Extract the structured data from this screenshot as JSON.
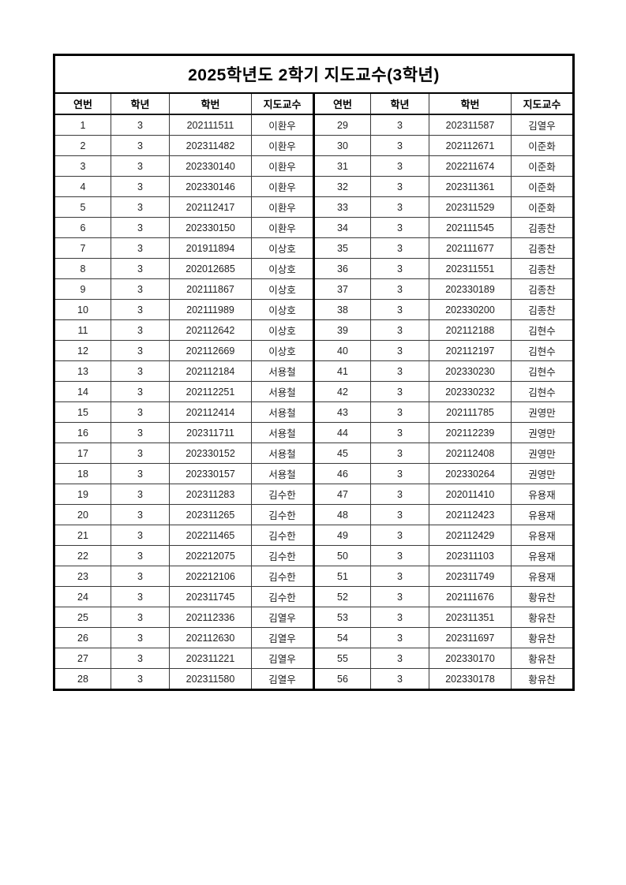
{
  "page": {
    "title": "2025학년도 2학기 지도교수(3학년)"
  },
  "table": {
    "headers": [
      "연번",
      "학년",
      "학번",
      "지도교수",
      "연번",
      "학년",
      "학번",
      "지도교수"
    ],
    "header_names": [
      "no",
      "grade",
      "student-id",
      "advisor",
      "no",
      "grade",
      "student-id",
      "advisor"
    ],
    "rows": [
      [
        "1",
        "3",
        "202111511",
        "이환우",
        "29",
        "3",
        "202311587",
        "김열우"
      ],
      [
        "2",
        "3",
        "202311482",
        "이환우",
        "30",
        "3",
        "202112671",
        "이준화"
      ],
      [
        "3",
        "3",
        "202330140",
        "이환우",
        "31",
        "3",
        "202211674",
        "이준화"
      ],
      [
        "4",
        "3",
        "202330146",
        "이환우",
        "32",
        "3",
        "202311361",
        "이준화"
      ],
      [
        "5",
        "3",
        "202112417",
        "이환우",
        "33",
        "3",
        "202311529",
        "이준화"
      ],
      [
        "6",
        "3",
        "202330150",
        "이환우",
        "34",
        "3",
        "202111545",
        "김종찬"
      ],
      [
        "7",
        "3",
        "201911894",
        "이상호",
        "35",
        "3",
        "202111677",
        "김종찬"
      ],
      [
        "8",
        "3",
        "202012685",
        "이상호",
        "36",
        "3",
        "202311551",
        "김종찬"
      ],
      [
        "9",
        "3",
        "202111867",
        "이상호",
        "37",
        "3",
        "202330189",
        "김종찬"
      ],
      [
        "10",
        "3",
        "202111989",
        "이상호",
        "38",
        "3",
        "202330200",
        "김종찬"
      ],
      [
        "11",
        "3",
        "202112642",
        "이상호",
        "39",
        "3",
        "202112188",
        "김현수"
      ],
      [
        "12",
        "3",
        "202112669",
        "이상호",
        "40",
        "3",
        "202112197",
        "김현수"
      ],
      [
        "13",
        "3",
        "202112184",
        "서용철",
        "41",
        "3",
        "202330230",
        "김현수"
      ],
      [
        "14",
        "3",
        "202112251",
        "서용철",
        "42",
        "3",
        "202330232",
        "김현수"
      ],
      [
        "15",
        "3",
        "202112414",
        "서용철",
        "43",
        "3",
        "202111785",
        "권영만"
      ],
      [
        "16",
        "3",
        "202311711",
        "서용철",
        "44",
        "3",
        "202112239",
        "권영만"
      ],
      [
        "17",
        "3",
        "202330152",
        "서용철",
        "45",
        "3",
        "202112408",
        "권영만"
      ],
      [
        "18",
        "3",
        "202330157",
        "서용철",
        "46",
        "3",
        "202330264",
        "권영만"
      ],
      [
        "19",
        "3",
        "202311283",
        "김수한",
        "47",
        "3",
        "202011410",
        "유용재"
      ],
      [
        "20",
        "3",
        "202311265",
        "김수한",
        "48",
        "3",
        "202112423",
        "유용재"
      ],
      [
        "21",
        "3",
        "202211465",
        "김수한",
        "49",
        "3",
        "202112429",
        "유용재"
      ],
      [
        "22",
        "3",
        "202212075",
        "김수한",
        "50",
        "3",
        "202311103",
        "유용재"
      ],
      [
        "23",
        "3",
        "202212106",
        "김수한",
        "51",
        "3",
        "202311749",
        "유용재"
      ],
      [
        "24",
        "3",
        "202311745",
        "김수한",
        "52",
        "3",
        "202111676",
        "황유찬"
      ],
      [
        "25",
        "3",
        "202112336",
        "김열우",
        "53",
        "3",
        "202311351",
        "황유찬"
      ],
      [
        "26",
        "3",
        "202112630",
        "김열우",
        "54",
        "3",
        "202311697",
        "황유찬"
      ],
      [
        "27",
        "3",
        "202311221",
        "김열우",
        "55",
        "3",
        "202330170",
        "황유찬"
      ],
      [
        "28",
        "3",
        "202311580",
        "김열우",
        "56",
        "3",
        "202330178",
        "황유찬"
      ]
    ]
  }
}
